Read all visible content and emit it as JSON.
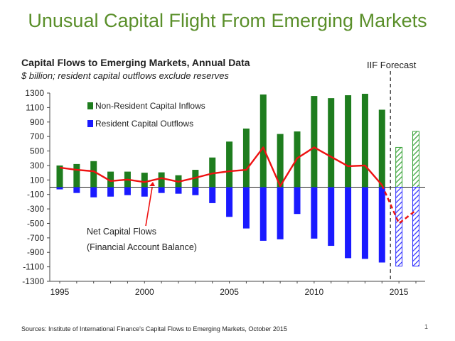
{
  "slide": {
    "title": "Unusual Capital Flight From Emerging Markets",
    "source": "Sources: Institute of International Finance's Capital Flows to Emerging Markets, October 2015",
    "page_number": "1"
  },
  "colors": {
    "title": "#5a8f2a",
    "inflow": "#1e7d1e",
    "outflow": "#1a1aff",
    "net": "#ee1111",
    "forecast_inflow": "#3aa33a",
    "forecast_outflow": "#3333ff"
  },
  "chart_data": {
    "type": "bar",
    "title": "Capital Flows to Emerging Markets, Annual Data",
    "subtitle": "$ billion; resident capital outflows exclude reserves",
    "forecast_label": "IIF Forecast",
    "xlabel": "",
    "ylabel": "",
    "x": [
      1995,
      1996,
      1997,
      1998,
      1999,
      2000,
      2001,
      2002,
      2003,
      2004,
      2005,
      2006,
      2007,
      2008,
      2009,
      2010,
      2011,
      2012,
      2013,
      2014,
      2015,
      2016
    ],
    "xticks": [
      1995,
      2000,
      2005,
      2010,
      2015
    ],
    "ylim": [
      -1300,
      1300
    ],
    "yticks": [
      1300,
      1100,
      900,
      700,
      500,
      300,
      100,
      -100,
      -300,
      -500,
      -700,
      -900,
      -1100,
      -1300
    ],
    "forecast_start_index": 20,
    "series": [
      {
        "name": "Non-Resident Capital Inflows",
        "kind": "bar",
        "values": [
          300,
          320,
          360,
          215,
          215,
          200,
          205,
          165,
          240,
          410,
          630,
          810,
          1280,
          735,
          770,
          1260,
          1230,
          1270,
          1290,
          1070,
          550,
          770
        ]
      },
      {
        "name": "Resident Capital Outflows",
        "kind": "bar",
        "values": [
          -30,
          -80,
          -140,
          -130,
          -110,
          -130,
          -80,
          -90,
          -110,
          -220,
          -410,
          -570,
          -740,
          -720,
          -370,
          -710,
          -810,
          -980,
          -990,
          -1040,
          -1090,
          -1090
        ]
      },
      {
        "name": "Net Capital Flows",
        "kind": "line",
        "values": [
          270,
          240,
          220,
          85,
          105,
          70,
          125,
          75,
          130,
          190,
          220,
          240,
          550,
          15,
          400,
          550,
          420,
          290,
          300,
          30,
          -500,
          -320
        ]
      }
    ],
    "legend": [
      {
        "label": "Non-Resident Capital Inflows"
      },
      {
        "label": "Resident Capital Outflows"
      }
    ],
    "annotation": {
      "line1": "Net Capital Flows",
      "line2": "(Financial Account Balance)"
    }
  }
}
